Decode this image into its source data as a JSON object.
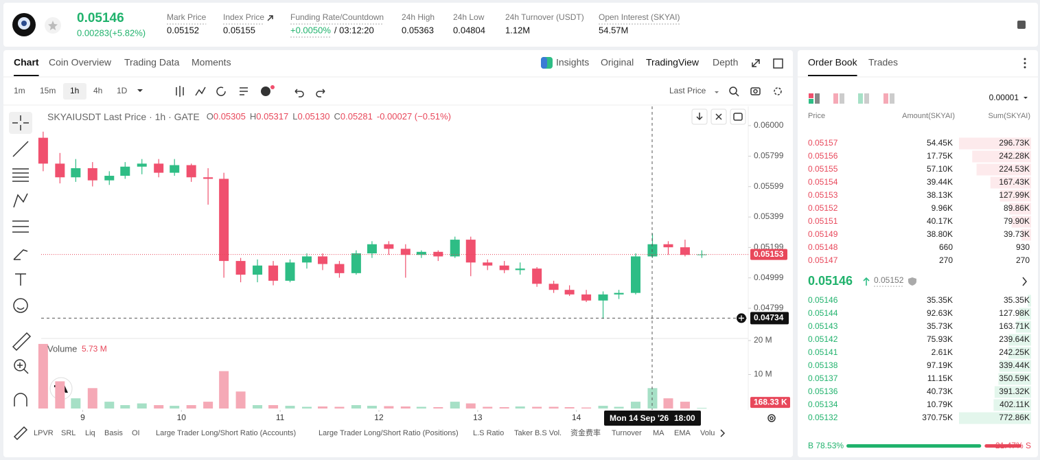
{
  "header": {
    "last_price": "0.05146",
    "change": "0.00283(+5.82%)",
    "stats": [
      {
        "label": "Mark Price",
        "value": "0.05152"
      },
      {
        "label": "Index Price",
        "value": "0.05155"
      },
      {
        "label": "Funding Rate/Countdown",
        "value": "+0.0050%",
        "value2": "/ 03:12:20"
      },
      {
        "label": "24h High",
        "value": "0.05363"
      },
      {
        "label": "24h Low",
        "value": "0.04804"
      },
      {
        "label": "24h Turnover (USDT)",
        "value": "1.12M"
      },
      {
        "label": "Open Interest (SKYAI)",
        "value": "54.57M"
      }
    ]
  },
  "chart_tabs": [
    "Chart",
    "Coin Overview",
    "Trading Data",
    "Moments"
  ],
  "view_tabs": [
    "Insights",
    "Original",
    "TradingView",
    "Depth"
  ],
  "intervals": [
    "1m",
    "15m",
    "1h",
    "4h",
    "1D"
  ],
  "price_source": "Last Price",
  "legend": {
    "title": "SKYAIUSDT Last Price · 1h · GATE",
    "ohlc": [
      {
        "key": "O",
        "value": "0.05305"
      },
      {
        "key": "H",
        "value": "0.05317"
      },
      {
        "key": "L",
        "value": "0.05130"
      },
      {
        "key": "C",
        "value": "0.05281"
      }
    ],
    "change": "-0.00027 (−0.51%)"
  },
  "last_price_marker": 0.05153,
  "crosshair": {
    "price": 0.04734,
    "date": "Mon 14 Sep '26",
    "time": "18:00"
  },
  "chart_data": [
    {
      "type": "candlestick",
      "x": [
        8.6,
        8.77,
        8.93,
        9.1,
        9.27,
        9.43,
        9.6,
        9.77,
        9.93,
        10.1,
        10.27,
        10.43,
        10.6,
        10.77,
        10.93,
        11.1,
        11.27,
        11.43,
        11.6,
        11.77,
        11.93,
        12.1,
        12.27,
        12.43,
        12.6,
        12.77,
        12.93,
        13.1,
        13.27,
        13.43,
        13.6,
        13.77,
        13.93,
        14.1,
        14.27,
        14.43,
        14.6,
        14.77,
        14.93,
        15.1,
        15.27
      ],
      "open": [
        0.0592,
        0.0575,
        0.0566,
        0.0572,
        0.0564,
        0.0567,
        0.0573,
        0.0575,
        0.0569,
        0.0574,
        0.0566,
        0.0565,
        0.0511,
        0.0502,
        0.0508,
        0.0498,
        0.051,
        0.0514,
        0.0509,
        0.0503,
        0.0516,
        0.0522,
        0.0519,
        0.0515,
        0.0517,
        0.0514,
        0.0525,
        0.051,
        0.0508,
        0.0505,
        0.0506,
        0.0496,
        0.0492,
        0.0489,
        0.0485,
        0.0489,
        0.049,
        0.0514,
        0.0522,
        0.052,
        0.0515
      ],
      "high": [
        0.0596,
        0.0582,
        0.0578,
        0.0576,
        0.057,
        0.0576,
        0.0578,
        0.0578,
        0.0578,
        0.0575,
        0.0572,
        0.0569,
        0.0513,
        0.0512,
        0.0511,
        0.0512,
        0.0516,
        0.0516,
        0.0511,
        0.0518,
        0.0524,
        0.0524,
        0.0522,
        0.0518,
        0.0518,
        0.0527,
        0.0527,
        0.0512,
        0.0511,
        0.051,
        0.0507,
        0.0498,
        0.0495,
        0.0492,
        0.0491,
        0.0492,
        0.0516,
        0.0529,
        0.0524,
        0.0525,
        0.0518
      ],
      "low": [
        0.057,
        0.0562,
        0.0563,
        0.056,
        0.0561,
        0.0565,
        0.0568,
        0.0566,
        0.0567,
        0.0563,
        0.0548,
        0.05,
        0.0497,
        0.0497,
        0.0495,
        0.0497,
        0.0506,
        0.0505,
        0.05,
        0.0502,
        0.0513,
        0.0515,
        0.05,
        0.0513,
        0.0511,
        0.0513,
        0.0501,
        0.0505,
        0.0503,
        0.0502,
        0.0494,
        0.049,
        0.0488,
        0.0484,
        0.0473,
        0.0486,
        0.0489,
        0.0513,
        0.0515,
        0.0514,
        0.0513
      ],
      "close": [
        0.0575,
        0.0566,
        0.0572,
        0.0564,
        0.0567,
        0.0573,
        0.0575,
        0.0569,
        0.0574,
        0.0566,
        0.0565,
        0.0511,
        0.0502,
        0.0508,
        0.0498,
        0.051,
        0.0514,
        0.0509,
        0.0503,
        0.0516,
        0.0522,
        0.0519,
        0.0515,
        0.0517,
        0.0514,
        0.0525,
        0.051,
        0.0508,
        0.0505,
        0.0506,
        0.0496,
        0.0492,
        0.0489,
        0.0485,
        0.0489,
        0.049,
        0.0514,
        0.0522,
        0.052,
        0.0515,
        0.05153
      ],
      "xlim": [
        8.58,
        15.74
      ],
      "xticks": [
        9,
        10,
        11,
        12,
        13,
        14
      ],
      "ylim": [
        0.04605,
        0.06126
      ],
      "yticks": [
        {
          "value": 0.06,
          "label": "0.06000"
        },
        0.05799,
        0.05599,
        0.05399,
        0.05199,
        0.04999,
        0.04799
      ],
      "colors": {
        "up": "#2ebd85",
        "down": "#f0506e"
      }
    },
    {
      "type": "bar",
      "title": "Volume",
      "legend_value": "5.73 M",
      "x": [
        8.6,
        8.77,
        8.93,
        9.1,
        9.27,
        9.43,
        9.6,
        9.77,
        9.93,
        10.1,
        10.27,
        10.43,
        10.6,
        10.77,
        10.93,
        11.1,
        11.27,
        11.43,
        11.6,
        11.77,
        11.93,
        12.1,
        12.27,
        12.43,
        12.6,
        12.77,
        12.93,
        13.1,
        13.27,
        13.43,
        13.6,
        13.77,
        13.93,
        14.1,
        14.27,
        14.43,
        14.6,
        14.77,
        14.93,
        15.1,
        15.27
      ],
      "values": [
        19,
        8,
        3,
        6,
        2,
        1,
        1.5,
        1,
        0.8,
        1,
        2,
        11,
        5,
        1,
        1,
        0.8,
        0.5,
        0.6,
        0.5,
        1,
        0.8,
        0.7,
        0.6,
        0.5,
        0.4,
        2,
        1.5,
        0.5,
        0.4,
        0.6,
        0.5,
        0.5,
        0.4,
        0.3,
        0.8,
        0.5,
        2,
        6,
        3,
        2,
        0.17
      ],
      "xlim": [
        8.58,
        15.74
      ],
      "ylim": [
        0,
        20.2
      ],
      "yticks": [
        {
          "value": 10,
          "label": "10 M"
        },
        {
          "value": 20,
          "label": "20 M"
        }
      ],
      "marker": {
        "value": 0.16833,
        "label": "168.33 K"
      },
      "colors": {
        "up": "#a6e0c6",
        "down": "#f5a9b6"
      }
    }
  ],
  "indicators": [
    "LPVR",
    "SRL",
    "Liq",
    "Basis",
    "OI",
    "Large Trader Long/Short Ratio (Accounts)",
    "Large Trader Long/Short Ratio (Positions)",
    "L.S Ratio",
    "Taker B.S Vol.",
    "资金费率",
    "Turnover",
    "MA",
    "EMA",
    "Volu"
  ],
  "order_book": {
    "tabs": [
      "Order Book",
      "Trades"
    ],
    "tick_size": "0.00001",
    "columns": [
      "Price",
      "Amount(SKYAI)",
      "Sum(SKYAI)"
    ],
    "asks": [
      {
        "price": "0.05157",
        "amount": "54.45K",
        "sum": {
          "value": 296730,
          "label": "296.73K"
        }
      },
      {
        "price": "0.05156",
        "amount": "17.75K",
        "sum": {
          "value": 242280,
          "label": "242.28K"
        }
      },
      {
        "price": "0.05155",
        "amount": "57.10K",
        "sum": {
          "value": 224530,
          "label": "224.53K"
        }
      },
      {
        "price": "0.05154",
        "amount": "39.44K",
        "sum": {
          "value": 167430,
          "label": "167.43K"
        }
      },
      {
        "price": "0.05153",
        "amount": "38.13K",
        "sum": {
          "value": 127990,
          "label": "127.99K"
        }
      },
      {
        "price": "0.05152",
        "amount": "9.96K",
        "sum": {
          "value": 89860,
          "label": "89.86K"
        }
      },
      {
        "price": "0.05151",
        "amount": "40.17K",
        "sum": {
          "value": 79900,
          "label": "79.90K"
        }
      },
      {
        "price": "0.05149",
        "amount": "38.80K",
        "sum": {
          "value": 39730,
          "label": "39.73K"
        }
      },
      {
        "price": "0.05148",
        "amount": "660",
        "sum": 930
      },
      {
        "price": "0.05147",
        "amount": "270",
        "sum": 270
      }
    ],
    "mid": {
      "price": "0.05146",
      "mark": "0.05152"
    },
    "bids": [
      {
        "price": "0.05146",
        "amount": "35.35K",
        "sum": {
          "value": 35350,
          "label": "35.35K"
        }
      },
      {
        "price": "0.05144",
        "amount": "92.63K",
        "sum": {
          "value": 127980,
          "label": "127.98K"
        }
      },
      {
        "price": "0.05143",
        "amount": "35.73K",
        "sum": {
          "value": 163710,
          "label": "163.71K"
        }
      },
      {
        "price": "0.05142",
        "amount": "75.93K",
        "sum": {
          "value": 239640,
          "label": "239.64K"
        }
      },
      {
        "price": "0.05141",
        "amount": "2.61K",
        "sum": {
          "value": 242250,
          "label": "242.25K"
        }
      },
      {
        "price": "0.05138",
        "amount": "97.19K",
        "sum": {
          "value": 339440,
          "label": "339.44K"
        }
      },
      {
        "price": "0.05137",
        "amount": "11.15K",
        "sum": {
          "value": 350590,
          "label": "350.59K"
        }
      },
      {
        "price": "0.05136",
        "amount": "40.73K",
        "sum": {
          "value": 391320,
          "label": "391.32K"
        }
      },
      {
        "price": "0.05134",
        "amount": "10.79K",
        "sum": {
          "value": 402110,
          "label": "402.11K"
        }
      },
      {
        "price": "0.05132",
        "amount": "370.75K",
        "sum": {
          "value": 772860,
          "label": "772.86K"
        }
      }
    ],
    "ratio": {
      "buy": {
        "value": 78.53,
        "label": "B 78.53%"
      },
      "sell": {
        "value": 21.47,
        "label": "21.47% S"
      }
    }
  }
}
